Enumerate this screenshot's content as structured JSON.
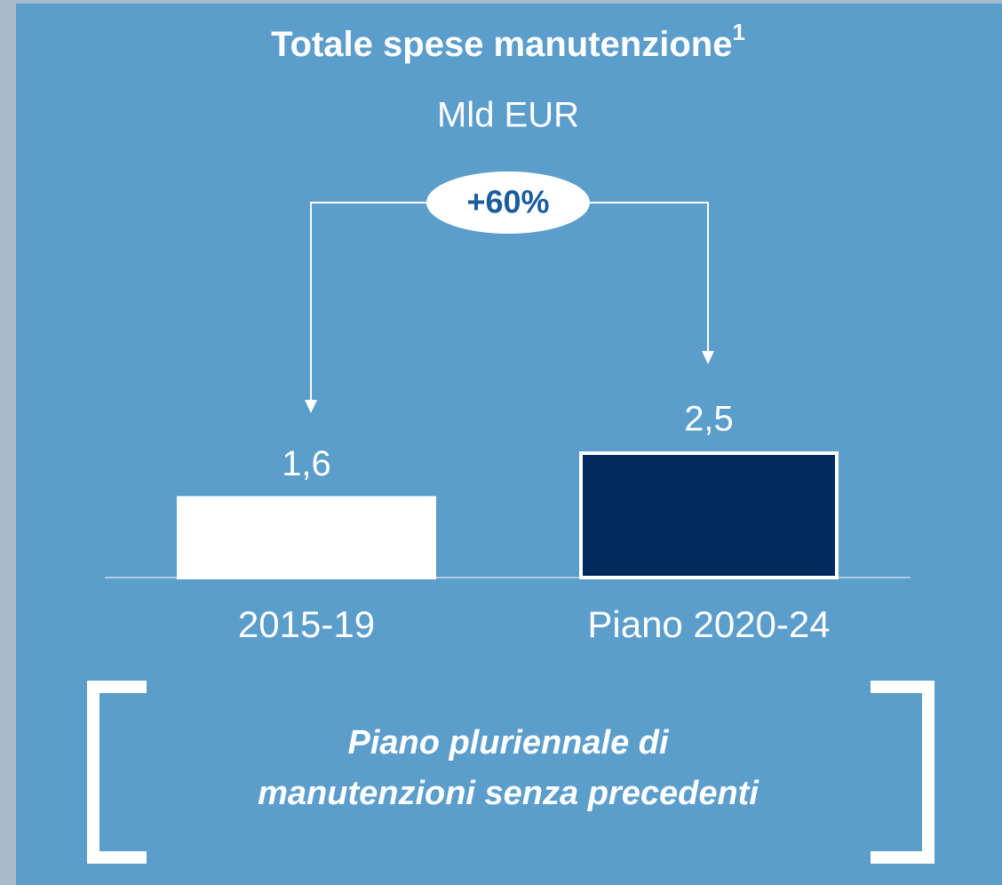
{
  "chart_data": {
    "type": "bar",
    "title": "Totale spese manutenzione",
    "title_superscript": "1",
    "subtitle": "Mld EUR",
    "annotation": "+60%",
    "categories": [
      "2015-19",
      "Piano 2020-24"
    ],
    "values": [
      1.6,
      2.5
    ],
    "value_labels": [
      "1,6",
      "2,5"
    ],
    "colors": [
      "#ffffff",
      "#002a5c"
    ],
    "footer": [
      "Piano pluriennale di",
      "manutenzioni senza precedenti"
    ]
  }
}
